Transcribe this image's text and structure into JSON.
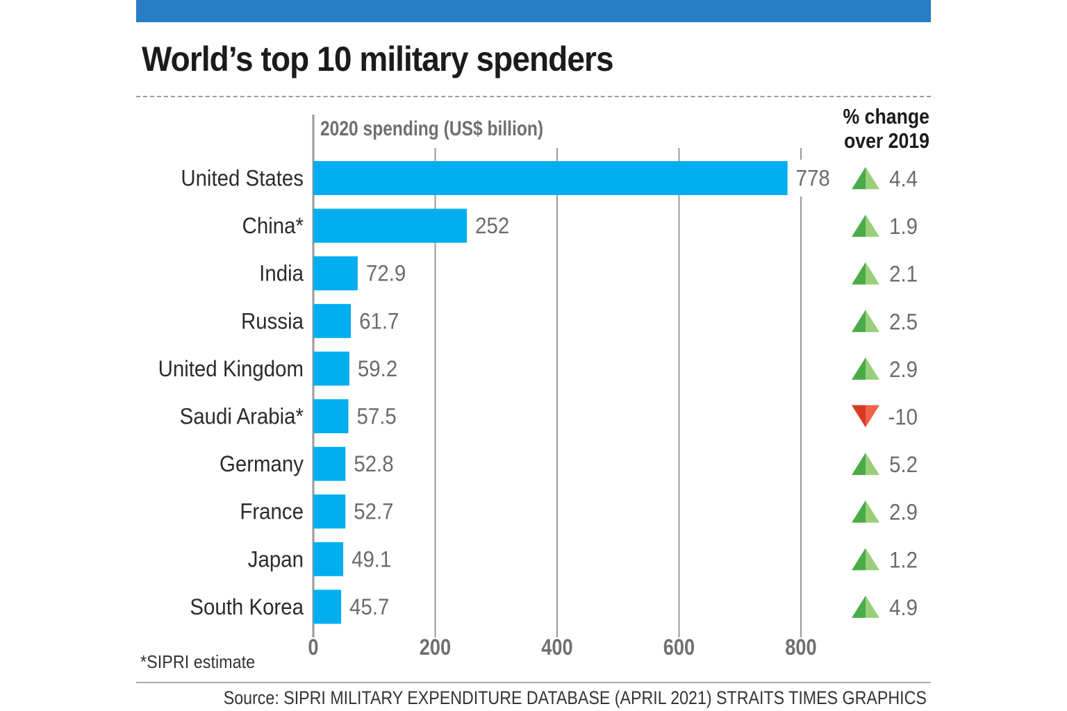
{
  "header": {
    "title": "World’s top 10 military spenders"
  },
  "chart_data": {
    "type": "bar",
    "orientation": "horizontal",
    "title": "World’s top 10 military spenders",
    "xlabel": "2020 spending (US$ billion)",
    "categories": [
      "United States",
      "China*",
      "India",
      "Russia",
      "United Kingdom",
      "Saudi Arabia*",
      "Germany",
      "France",
      "Japan",
      "South Korea"
    ],
    "values": [
      778,
      252,
      72.9,
      61.7,
      59.2,
      57.5,
      52.8,
      52.7,
      49.1,
      45.7
    ],
    "value_labels": [
      "778",
      "252",
      "72.9",
      "61.7",
      "59.2",
      "57.5",
      "52.8",
      "52.7",
      "49.1",
      "45.7"
    ],
    "xlim": [
      0,
      800
    ],
    "xticks": [
      0,
      200,
      400,
      600,
      800
    ],
    "xtick_labels": [
      "0",
      "200",
      "400",
      "600",
      "800"
    ],
    "grid": true,
    "bar_color": "#00aeef",
    "change_header": "% change over 2019",
    "change_header_lines": [
      "% change",
      "over 2019"
    ],
    "pct_change": [
      4.4,
      1.9,
      2.1,
      2.5,
      2.9,
      -10,
      5.2,
      2.9,
      1.2,
      4.9
    ],
    "pct_change_labels": [
      "4.4",
      "1.9",
      "2.1",
      "2.5",
      "2.9",
      "-10",
      "5.2",
      "2.9",
      "1.2",
      "4.9"
    ],
    "up_colors": [
      "#4aab48",
      "#98d07a"
    ],
    "down_colors": [
      "#d83a22",
      "#f2614a"
    ]
  },
  "footnote": "*SIPRI estimate",
  "source": "Source: SIPRI MILITARY EXPENDITURE DATABASE (APRIL 2021) STRAITS TIMES GRAPHICS"
}
